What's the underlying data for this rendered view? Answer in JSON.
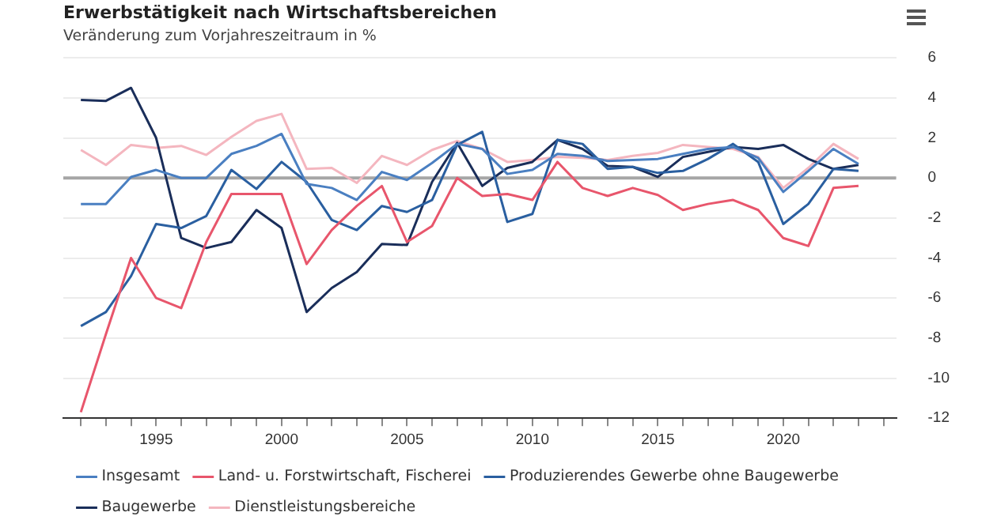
{
  "chart_data": {
    "type": "line",
    "title": "Erwerbstätigkeit nach Wirtschaftsbereichen",
    "subtitle": "Veränderung zum Vorjahreszeitraum in %",
    "x": [
      1992,
      1993,
      1994,
      1995,
      1996,
      1997,
      1998,
      1999,
      2000,
      2001,
      2002,
      2003,
      2004,
      2005,
      2006,
      2007,
      2008,
      2009,
      2010,
      2011,
      2012,
      2013,
      2014,
      2015,
      2016,
      2017,
      2018,
      2019,
      2020,
      2021,
      2022,
      2023
    ],
    "series": [
      {
        "name": "Insgesamt",
        "color": "#4a7fc1",
        "values": [
          -1.3,
          -1.3,
          0.05,
          0.4,
          0,
          0,
          1.2,
          1.6,
          2.2,
          -0.3,
          -0.5,
          -1.1,
          0.3,
          -0.1,
          0.75,
          1.7,
          1.45,
          0.2,
          0.4,
          1.2,
          1.1,
          0.85,
          0.9,
          0.95,
          1.2,
          1.45,
          1.55,
          1.0,
          -0.7,
          0.35,
          1.45,
          0.7
        ]
      },
      {
        "name": "Land- u. Forstwirtschaft, Fischerei",
        "color": "#e8566c",
        "values": [
          -11.7,
          -7.8,
          -4.0,
          -6.0,
          -6.5,
          -3.2,
          -0.8,
          -0.8,
          -0.8,
          -4.3,
          -2.6,
          -1.4,
          -0.4,
          -3.2,
          -2.4,
          0,
          -0.9,
          -0.8,
          -1.1,
          0.8,
          -0.5,
          -0.9,
          -0.5,
          -0.85,
          -1.6,
          -1.3,
          -1.1,
          -1.6,
          -3.0,
          -3.4,
          -0.5,
          -0.4
        ]
      },
      {
        "name": "Produzierendes Gewerbe ohne Baugewerbe",
        "color": "#2a5fa0",
        "values": [
          -7.4,
          -6.7,
          -4.9,
          -2.3,
          -2.5,
          -1.9,
          0.4,
          -0.55,
          0.8,
          -0.2,
          -2.1,
          -2.6,
          -1.4,
          -1.7,
          -1.1,
          1.65,
          2.3,
          -2.2,
          -1.8,
          1.9,
          1.7,
          0.45,
          0.55,
          0.25,
          0.35,
          0.95,
          1.7,
          0.8,
          -2.3,
          -1.3,
          0.45,
          0.35
        ]
      },
      {
        "name": "Baugewerbe",
        "color": "#1a2e5a",
        "values": [
          3.9,
          3.85,
          4.5,
          2.0,
          -3.0,
          -3.5,
          -3.2,
          -1.6,
          -2.5,
          -6.7,
          -5.5,
          -4.7,
          -3.3,
          -3.35,
          -0.2,
          1.75,
          -0.4,
          0.5,
          0.8,
          1.9,
          1.45,
          0.6,
          0.55,
          0.05,
          1.05,
          1.3,
          1.55,
          1.45,
          1.65,
          0.95,
          0.45,
          0.65
        ]
      },
      {
        "name": "Dienstleistungsbereiche",
        "color": "#f4b6bf",
        "values": [
          1.4,
          0.65,
          1.65,
          1.5,
          1.6,
          1.15,
          2.05,
          2.85,
          3.2,
          0.45,
          0.5,
          -0.25,
          1.1,
          0.65,
          1.4,
          1.85,
          1.45,
          0.8,
          0.9,
          1.05,
          1.0,
          0.9,
          1.1,
          1.25,
          1.65,
          1.55,
          1.45,
          1.05,
          -0.5,
          0.5,
          1.7,
          0.95
        ]
      }
    ],
    "xlim": [
      1991.3,
      2024.5
    ],
    "xticks": [
      {
        "value": 1992,
        "label": null
      },
      {
        "value": 1993,
        "label": null
      },
      {
        "value": 1994,
        "label": null
      },
      1995,
      {
        "value": 1996,
        "label": null
      },
      {
        "value": 1997,
        "label": null
      },
      {
        "value": 1998,
        "label": null
      },
      {
        "value": 1999,
        "label": null
      },
      2000,
      {
        "value": 2001,
        "label": null
      },
      {
        "value": 2002,
        "label": null
      },
      {
        "value": 2003,
        "label": null
      },
      {
        "value": 2004,
        "label": null
      },
      2005,
      {
        "value": 2006,
        "label": null
      },
      {
        "value": 2007,
        "label": null
      },
      {
        "value": 2008,
        "label": null
      },
      {
        "value": 2009,
        "label": null
      },
      2010,
      {
        "value": 2011,
        "label": null
      },
      {
        "value": 2012,
        "label": null
      },
      {
        "value": 2013,
        "label": null
      },
      {
        "value": 2014,
        "label": null
      },
      2015,
      {
        "value": 2016,
        "label": null
      },
      {
        "value": 2017,
        "label": null
      },
      {
        "value": 2018,
        "label": null
      },
      {
        "value": 2019,
        "label": null
      },
      2020,
      {
        "value": 2021,
        "label": null
      },
      {
        "value": 2022,
        "label": null
      },
      {
        "value": 2023,
        "label": null
      },
      {
        "value": 2024,
        "label": null
      }
    ],
    "ylim": [
      -12,
      6
    ],
    "yticks": [
      -12,
      -10,
      -8,
      -6,
      -4,
      -2,
      0,
      2,
      4,
      6
    ],
    "ref_lines": [
      {
        "axis": "y",
        "value": 0,
        "color": "#a6a6a6"
      }
    ],
    "grid": "y",
    "legend": "bottom",
    "marker": "none",
    "line_style": "solid"
  }
}
